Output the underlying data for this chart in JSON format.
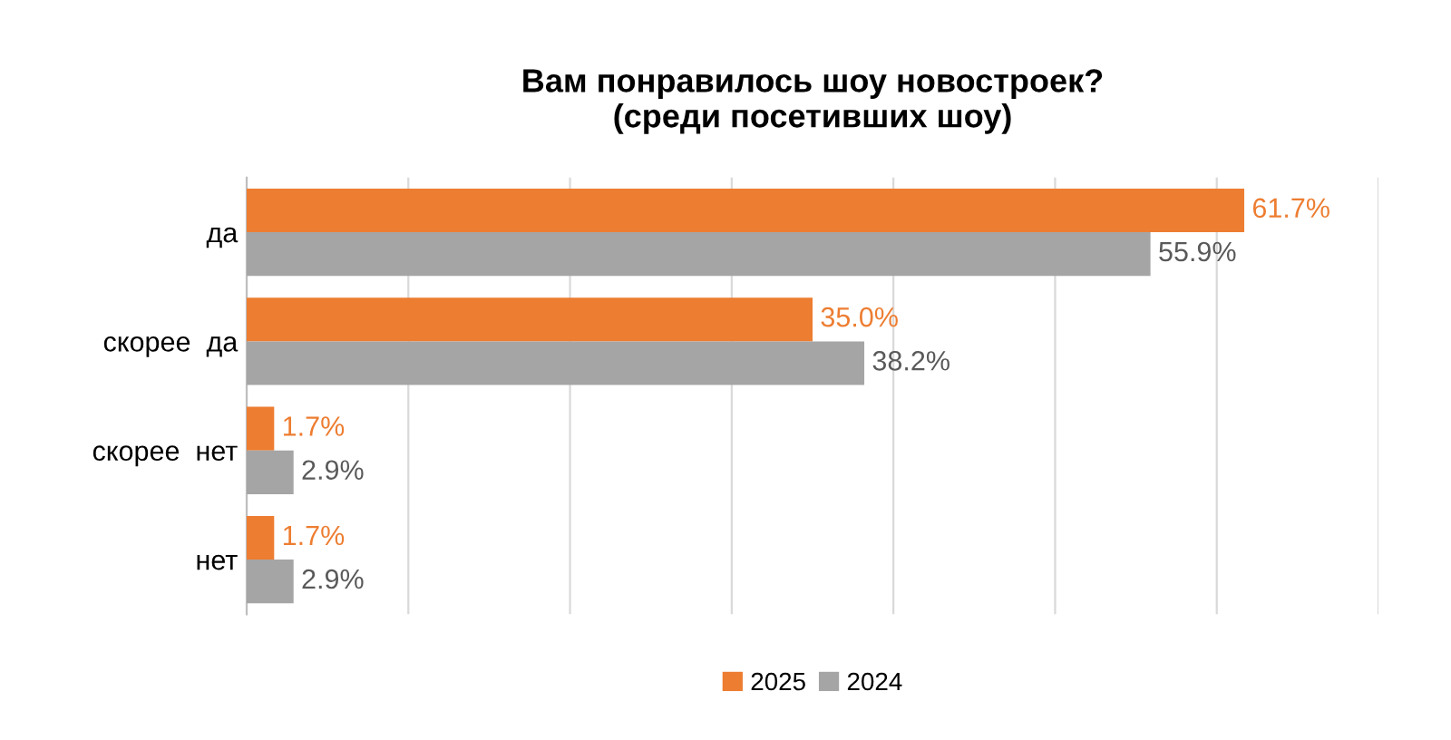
{
  "chart_data": {
    "type": "bar",
    "orientation": "horizontal",
    "title": "Вам понравилось шоу новостроек?\n(среди посетивших шоу)",
    "categories": [
      "да",
      "скорее  да",
      "скорее  нет",
      "нет"
    ],
    "series": [
      {
        "name": "2025",
        "color": "#ed7d31",
        "values": [
          61.7,
          35.0,
          1.7,
          1.7
        ],
        "value_labels": [
          "61.7%",
          "35.0%",
          "1.7%",
          "1.7%"
        ]
      },
      {
        "name": "2024",
        "color": "#a5a5a5",
        "values": [
          55.9,
          38.2,
          2.9,
          2.9
        ],
        "value_labels": [
          "55.9%",
          "38.2%",
          "2.9%",
          "2.9%"
        ]
      }
    ],
    "xlim": [
      0,
      70
    ],
    "xticks": [
      {
        "value": 0,
        "label": null
      },
      {
        "value": 10,
        "label": null
      },
      {
        "value": 20,
        "label": null
      },
      {
        "value": 30,
        "label": null
      },
      {
        "value": 40,
        "label": null
      },
      {
        "value": 50,
        "label": null
      },
      {
        "value": 60,
        "label": null
      },
      {
        "value": 70,
        "label": null
      }
    ],
    "grid": "x",
    "legend": "bottom",
    "tick_labels": "y"
  }
}
